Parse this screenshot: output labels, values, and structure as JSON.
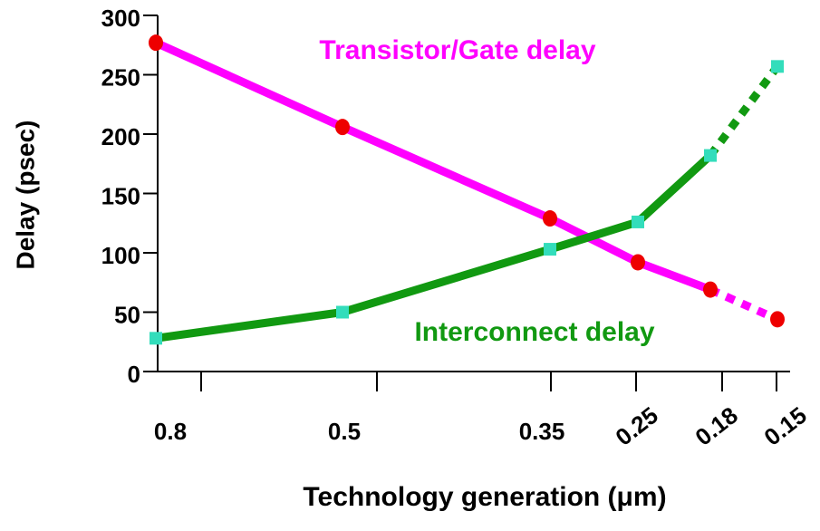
{
  "chart_data": {
    "type": "line",
    "x_label": "Technology generation (μm)",
    "y_label": "Delay (psec)",
    "categories": [
      "0.8",
      "0.5",
      "0.35",
      "0.25",
      "0.18",
      "0.15"
    ],
    "series": [
      {
        "name": "Transistor/Gate delay",
        "color": "#ff00ff",
        "marker_color": "#ee0000",
        "marker": "circle",
        "dashed_from": 4,
        "values": [
          277,
          206,
          129,
          92,
          69,
          44
        ]
      },
      {
        "name": "Interconnect delay",
        "color": "#119911",
        "marker_color": "#33ddbb",
        "marker": "square",
        "dashed_from": 4,
        "values": [
          28,
          50,
          103,
          126,
          182,
          257
        ]
      }
    ],
    "ylim": [
      0,
      300
    ],
    "yticks": [
      0,
      50,
      100,
      150,
      200,
      250,
      300
    ]
  }
}
